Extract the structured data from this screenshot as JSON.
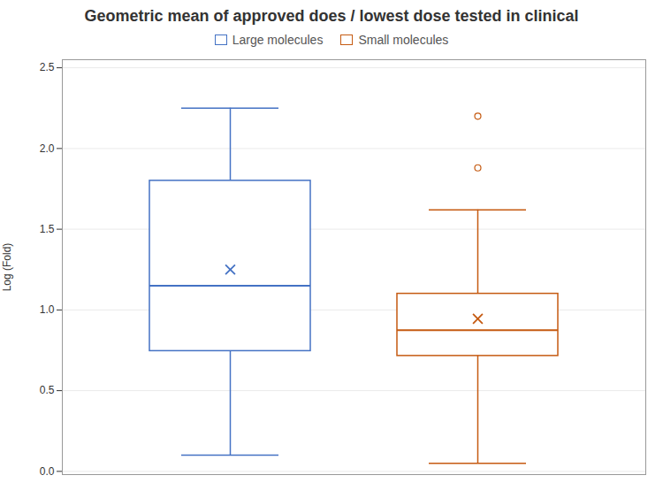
{
  "chart_data": {
    "type": "box",
    "title": "Geometric mean of approved does / lowest dose tested in clinical",
    "ylabel": "Log (Fold)",
    "ylim": [
      -0.02,
      2.55
    ],
    "yticks": [
      {
        "value": 0,
        "label": "0.0"
      },
      0.5,
      {
        "value": 1,
        "label": "1.0"
      },
      1.5,
      {
        "value": 2,
        "label": "2.0"
      },
      2.5
    ],
    "grid": true,
    "legend": "top",
    "tick_labels": "y",
    "series": [
      {
        "name": "Large molecules",
        "color": "#4472c4",
        "q1": 0.745,
        "median": 1.15,
        "q3": 1.8,
        "whisker_low": 0.1,
        "whisker_high": 2.25,
        "mean": 1.25,
        "outliers": []
      },
      {
        "name": "Small molecules",
        "color": "#c55a11",
        "q1": 0.715,
        "median": 0.875,
        "q3": 1.1,
        "whisker_low": 0.05,
        "whisker_high": 1.62,
        "mean": 0.945,
        "outliers": [
          1.88,
          2.2
        ]
      }
    ]
  }
}
